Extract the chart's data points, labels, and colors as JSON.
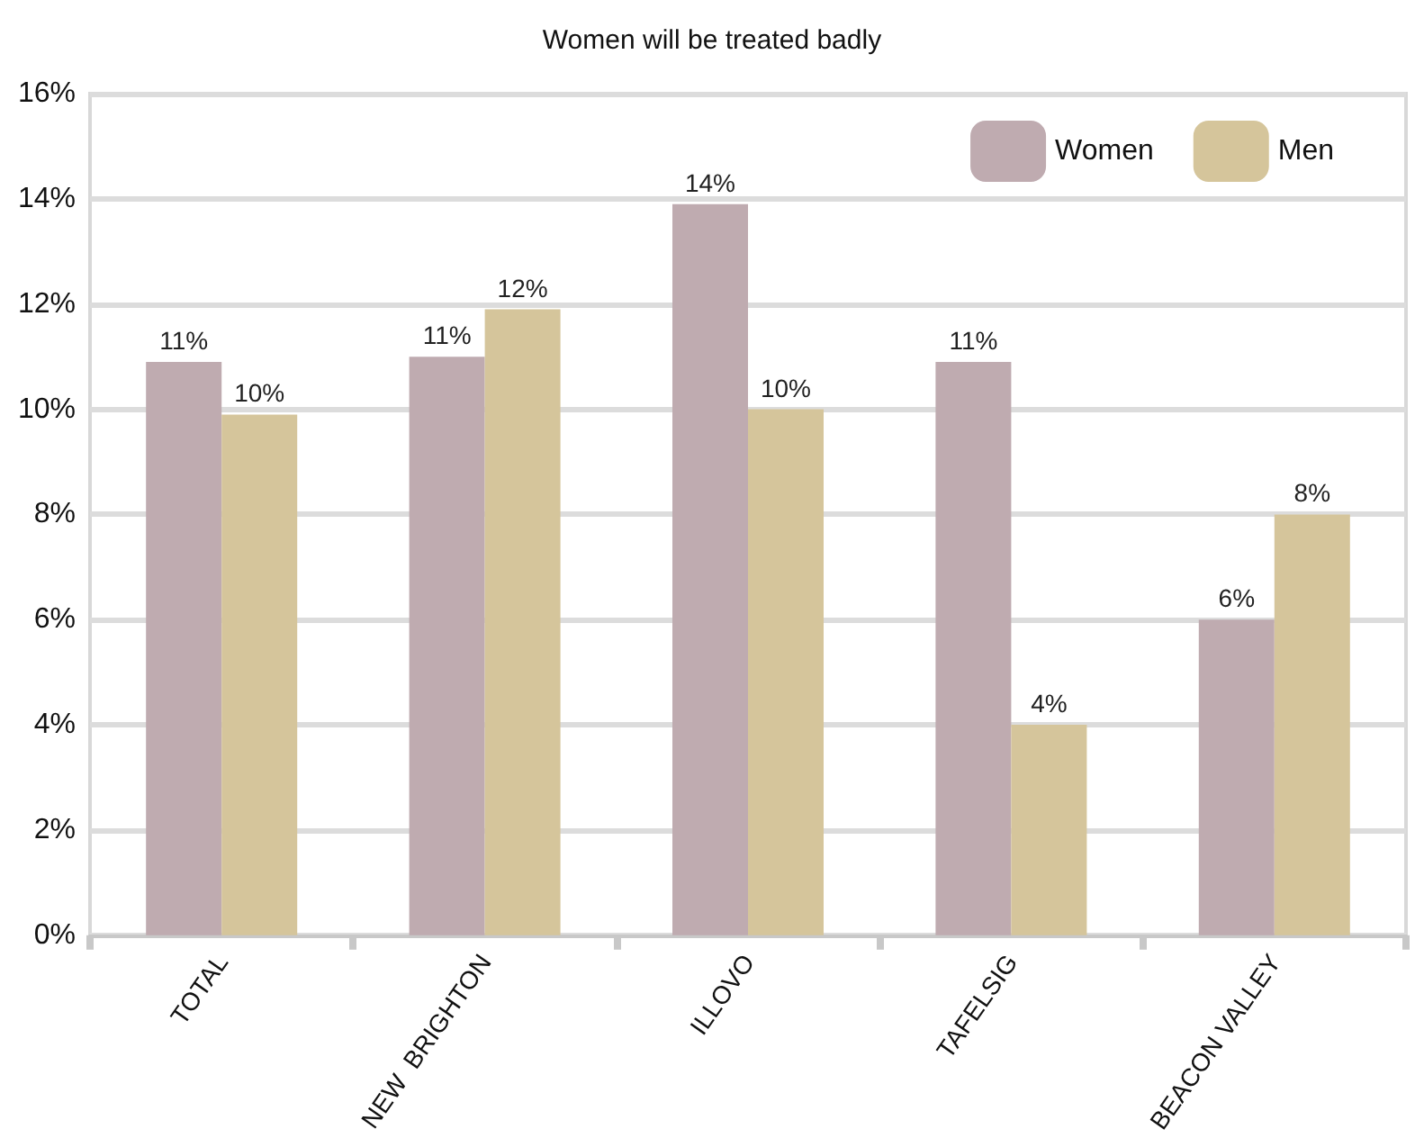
{
  "chart_data": {
    "type": "bar",
    "title": "Women will be treated badly",
    "categories": [
      "TOTAL",
      "NEW  BRIGHTON",
      "ILLOVO",
      "TAFELSIG",
      "BEACON VALLEY"
    ],
    "series": [
      {
        "name": "Women",
        "color": "#bfabb0",
        "values": [
          10.9,
          11,
          13.9,
          10.9,
          6
        ],
        "value_labels": [
          "11%",
          "11%",
          "14%",
          "11%",
          "6%"
        ]
      },
      {
        "name": "Men",
        "color": "#d5c59b",
        "values": [
          9.9,
          11.9,
          10,
          4,
          8
        ],
        "value_labels": [
          "10%",
          "12%",
          "10%",
          "4%",
          "8%"
        ]
      }
    ],
    "ylim": [
      0,
      16
    ],
    "yticks": [
      {
        "value": 0,
        "label": "0%"
      },
      {
        "value": 2,
        "label": "2%"
      },
      {
        "value": 4,
        "label": "4%"
      },
      {
        "value": 6,
        "label": "6%"
      },
      {
        "value": 8,
        "label": "8%"
      },
      {
        "value": 10,
        "label": "10%"
      },
      {
        "value": 12,
        "label": "12%"
      },
      {
        "value": 14,
        "label": "14%"
      },
      {
        "value": 16,
        "label": "16%"
      }
    ],
    "grid": "y",
    "legend": "top right"
  }
}
